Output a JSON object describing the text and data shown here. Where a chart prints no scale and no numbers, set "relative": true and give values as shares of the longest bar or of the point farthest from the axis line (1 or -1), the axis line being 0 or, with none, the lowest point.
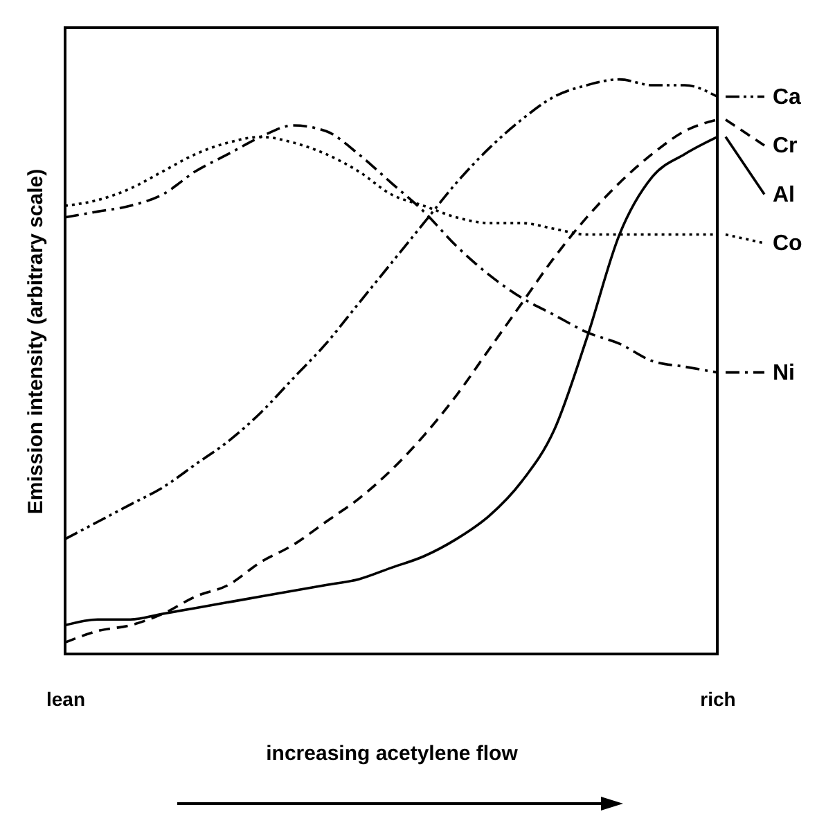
{
  "chart_data": {
    "type": "line",
    "relative": true,
    "legend": "right",
    "xlabel": "increasing acetylene flow",
    "ylabel": "Emission intensity (arbitrary scale)",
    "categories": [
      "lean",
      null,
      null,
      null,
      null,
      null,
      null,
      null,
      null,
      null,
      null,
      null,
      null,
      null,
      null,
      null,
      null,
      null,
      null,
      null,
      "rich"
    ],
    "series": [
      {
        "name": "Ca",
        "color": "#000000",
        "line_style": "dashdotdot",
        "values": [
          0.2,
          0.23,
          0.26,
          0.29,
          0.33,
          0.37,
          0.42,
          0.48,
          0.54,
          0.61,
          0.68,
          0.75,
          0.82,
          0.88,
          0.93,
          0.97,
          0.99,
          1.0,
          0.99,
          0.99,
          0.97
        ]
      },
      {
        "name": "Cr",
        "color": "#000000",
        "line_style": "dashed",
        "values": [
          0.02,
          0.04,
          0.05,
          0.07,
          0.1,
          0.12,
          0.16,
          0.19,
          0.23,
          0.27,
          0.32,
          0.38,
          0.45,
          0.53,
          0.61,
          0.69,
          0.76,
          0.82,
          0.87,
          0.91,
          0.93
        ]
      },
      {
        "name": "Al",
        "color": "#000000",
        "line_style": "solid",
        "values": [
          0.05,
          0.06,
          0.06,
          0.07,
          0.08,
          0.09,
          0.1,
          0.11,
          0.12,
          0.13,
          0.15,
          0.17,
          0.2,
          0.24,
          0.3,
          0.39,
          0.55,
          0.73,
          0.83,
          0.87,
          0.9
        ]
      },
      {
        "name": "Co",
        "color": "#000000",
        "line_style": "dotted",
        "values": [
          0.78,
          0.79,
          0.81,
          0.84,
          0.87,
          0.89,
          0.9,
          0.89,
          0.87,
          0.84,
          0.8,
          0.78,
          0.76,
          0.75,
          0.75,
          0.74,
          0.73,
          0.73,
          0.73,
          0.73,
          0.73
        ]
      },
      {
        "name": "Ni",
        "color": "#000000",
        "line_style": "dashdot",
        "values": [
          0.76,
          0.77,
          0.78,
          0.8,
          0.84,
          0.87,
          0.9,
          0.92,
          0.91,
          0.87,
          0.82,
          0.77,
          0.71,
          0.66,
          0.62,
          0.59,
          0.56,
          0.54,
          0.51,
          0.5,
          0.49
        ]
      }
    ]
  }
}
